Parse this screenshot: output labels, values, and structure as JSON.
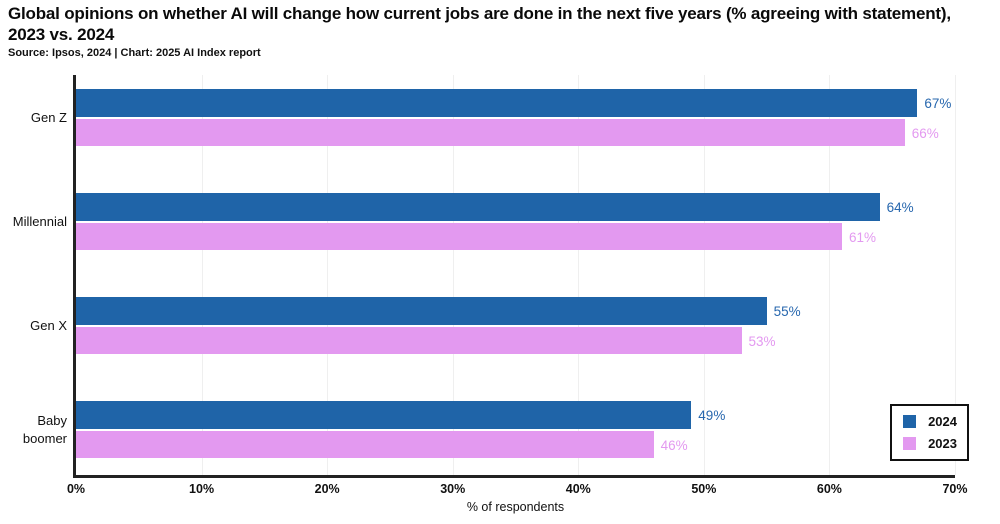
{
  "title": "Global opinions on whether AI will change how current jobs are done in the next five years (% agreeing with statement), 2023 vs. 2024",
  "source": "Source: Ipsos, 2024 | Chart: 2025 AI Index report",
  "colors": {
    "bar_2024": "#1f64a8",
    "bar_2023": "#e399f0",
    "label_2024": "#2767ae",
    "label_2023": "#e399f0",
    "axis": "#222222",
    "gridline": "#efefef"
  },
  "chart_data": {
    "type": "bar",
    "orientation": "horizontal",
    "title": "Global opinions on whether AI will change how current jobs are done in the next five years (% agreeing with statement), 2023 vs. 2024",
    "categories": [
      "Gen Z",
      "Millennial",
      "Gen X",
      "Baby boomer"
    ],
    "series": [
      {
        "name": "2024",
        "color": "#1f64a8",
        "label_color": "#2767ae",
        "values": [
          67,
          64,
          55,
          49
        ]
      },
      {
        "name": "2023",
        "color": "#e399f0",
        "label_color": "#e399f0",
        "values": [
          66,
          61,
          53,
          46
        ]
      }
    ],
    "value_suffix": "%",
    "xlabel": "% of respondents",
    "xlim": [
      0,
      70
    ],
    "xticks": [
      "0%",
      "10%",
      "20%",
      "30%",
      "40%",
      "50%",
      "60%",
      "70%"
    ],
    "grid": "vertical",
    "legend_position": "bottom-right"
  }
}
